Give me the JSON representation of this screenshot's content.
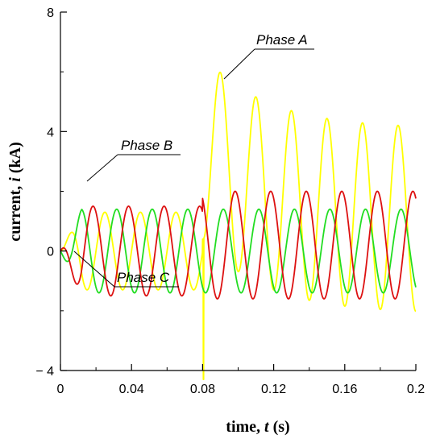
{
  "chart_data": {
    "type": "line",
    "title": "",
    "xlabel": "time, t (s)",
    "xlabel_parts": {
      "prefix": "time, ",
      "var": "t",
      "suffix": " (s)"
    },
    "ylabel": "current, i (kA)",
    "ylabel_parts": {
      "prefix": "current, ",
      "var": "i",
      "suffix": " (kA)"
    },
    "xlim": [
      0,
      0.2
    ],
    "ylim": [
      -4,
      8
    ],
    "x_ticks": [
      0,
      0.04,
      0.08,
      0.12,
      0.16,
      0.2
    ],
    "x_tick_labels": [
      "0",
      "0.04",
      "0.08",
      "0.12",
      "0.16",
      "0.2"
    ],
    "y_ticks": [
      -4,
      0,
      4,
      8
    ],
    "y_tick_labels": [
      "− 4",
      "0",
      "4",
      "8"
    ],
    "grid": false,
    "legend": "none",
    "frequency_hz": 50,
    "fault_time_s": 0.08,
    "series": [
      {
        "name": "Phase A",
        "color": "#ffff00",
        "pre_fault": {
          "amplitude": 1.3,
          "phase_deg": 0
        },
        "post_fault": {
          "ac_amplitude": 3.1,
          "dc_offset_initial": 3.5,
          "dc_offset_final": 1.0,
          "time_constant_s": 0.035,
          "phase_deg": 0
        },
        "fault_spike": {
          "t": 0.0805,
          "value": -4.3
        }
      },
      {
        "name": "Phase B",
        "color": "#22dd22",
        "pre_fault": {
          "amplitude": 1.4,
          "phase_deg": -120
        },
        "post_fault": {
          "amplitude": 1.4,
          "phase_deg": -120
        }
      },
      {
        "name": "Phase C",
        "color": "#dd1111",
        "pre_fault": {
          "amplitude": 1.5,
          "phase_deg": 120
        },
        "post_fault": {
          "amplitude": 1.8,
          "phase_deg": 120,
          "offset": 0.2
        }
      }
    ],
    "annotations": [
      {
        "text": "Phase A",
        "series": "Phase A"
      },
      {
        "text": "Phase B",
        "series": "Phase B"
      },
      {
        "text": "Phase C",
        "series": "Phase C"
      }
    ]
  }
}
